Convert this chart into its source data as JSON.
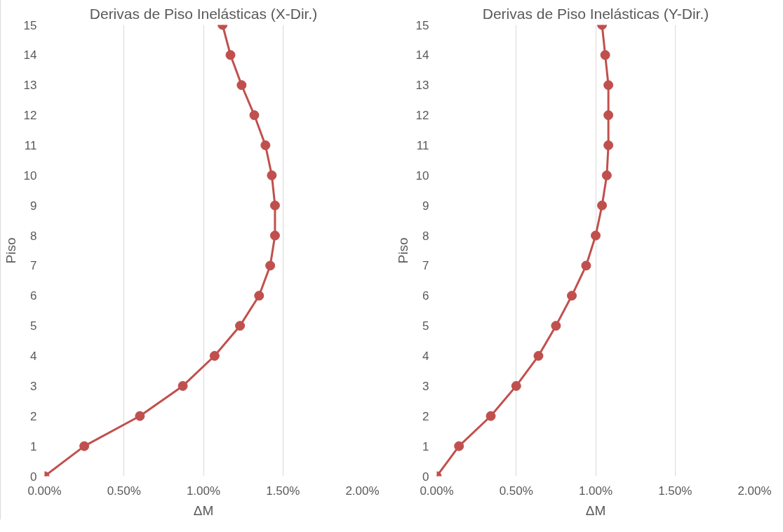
{
  "chart_data": [
    {
      "type": "line",
      "title": "Derivas de Piso Inelásticas (X-Dir.)",
      "xlabel": "ΔM",
      "ylabel": "Piso",
      "marker": "circle",
      "grid": "x",
      "series": [
        {
          "color": "#c0504d",
          "x": [
            0,
            0.25,
            0.6,
            0.87,
            1.07,
            1.23,
            1.35,
            1.42,
            1.45,
            1.45,
            1.43,
            1.39,
            1.32,
            1.24,
            1.17,
            1.12
          ],
          "values": [
            0,
            1,
            2,
            3,
            4,
            5,
            6,
            7,
            8,
            9,
            10,
            11,
            12,
            13,
            14,
            15
          ]
        }
      ],
      "xlim": [
        0,
        2
      ],
      "xticks": [
        {
          "value": 0,
          "label": "0.00%"
        },
        {
          "value": 0.5,
          "label": "0.50%"
        },
        {
          "value": 1,
          "label": "1.00%"
        },
        {
          "value": 1.5,
          "label": "1.50%"
        },
        {
          "value": 2,
          "label": "2.00%"
        }
      ],
      "ylim": [
        0,
        15
      ],
      "yticks": [
        0,
        1,
        2,
        3,
        4,
        5,
        6,
        7,
        8,
        9,
        10,
        11,
        12,
        13,
        14,
        15
      ]
    },
    {
      "type": "line",
      "title": "Derivas de Piso Inelásticas (Y-Dir.)",
      "xlabel": "ΔM",
      "ylabel": "Piso",
      "marker": "circle",
      "grid": "x",
      "series": [
        {
          "color": "#c0504d",
          "x": [
            0,
            0.14,
            0.34,
            0.5,
            0.64,
            0.75,
            0.85,
            0.94,
            1.0,
            1.04,
            1.07,
            1.08,
            1.08,
            1.08,
            1.06,
            1.04
          ],
          "values": [
            0,
            1,
            2,
            3,
            4,
            5,
            6,
            7,
            8,
            9,
            10,
            11,
            12,
            13,
            14,
            15
          ]
        }
      ],
      "xlim": [
        0,
        2
      ],
      "xticks": [
        {
          "value": 0,
          "label": "0.00%"
        },
        {
          "value": 0.5,
          "label": "0.50%"
        },
        {
          "value": 1,
          "label": "1.00%"
        },
        {
          "value": 1.5,
          "label": "1.50%"
        },
        {
          "value": 2,
          "label": "2.00%"
        }
      ],
      "ylim": [
        0,
        15
      ],
      "yticks": [
        0,
        1,
        2,
        3,
        4,
        5,
        6,
        7,
        8,
        9,
        10,
        11,
        12,
        13,
        14,
        15
      ]
    }
  ]
}
